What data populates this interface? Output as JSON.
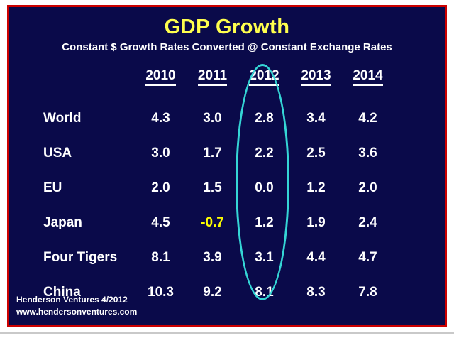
{
  "slide": {
    "title": "GDP Growth",
    "subtitle": "Constant $ Growth Rates Converted @ Constant Exchange Rates",
    "footer_line1": "Henderson Ventures 4/2012",
    "footer_line2": "www.hendersonventures.com"
  },
  "colors": {
    "slide_background": "#0a0a4a",
    "border": "#cc0000",
    "title": "#ffff4d",
    "text": "#ffffff",
    "negative_value": "#ffff00",
    "highlight_ellipse": "#35d6d6"
  },
  "chart_data": {
    "type": "table",
    "title": "GDP Growth",
    "subtitle": "Constant $ Growth Rates Converted @ Constant Exchange Rates",
    "columns": [
      "2010",
      "2011",
      "2012",
      "2013",
      "2014"
    ],
    "rows": [
      {
        "label": "World",
        "values": [
          "4.3",
          "3.0",
          "2.8",
          "3.4",
          "4.2"
        ]
      },
      {
        "label": "USA",
        "values": [
          "3.0",
          "1.7",
          "2.2",
          "2.5",
          "3.6"
        ]
      },
      {
        "label": "EU",
        "values": [
          "2.0",
          "1.5",
          "0.0",
          "1.2",
          "2.0"
        ]
      },
      {
        "label": "Japan",
        "values": [
          "4.5",
          "-0.7",
          "1.2",
          "1.9",
          "2.4"
        ]
      },
      {
        "label": "Four Tigers",
        "values": [
          "8.1",
          "3.9",
          "3.1",
          "4.4",
          "4.7"
        ]
      },
      {
        "label": "China",
        "values": [
          "10.3",
          "9.2",
          "8.1",
          "8.3",
          "7.8"
        ]
      }
    ],
    "highlighted_column": "2012",
    "annotation": "cyan ellipse drawn around the 2012 column"
  }
}
